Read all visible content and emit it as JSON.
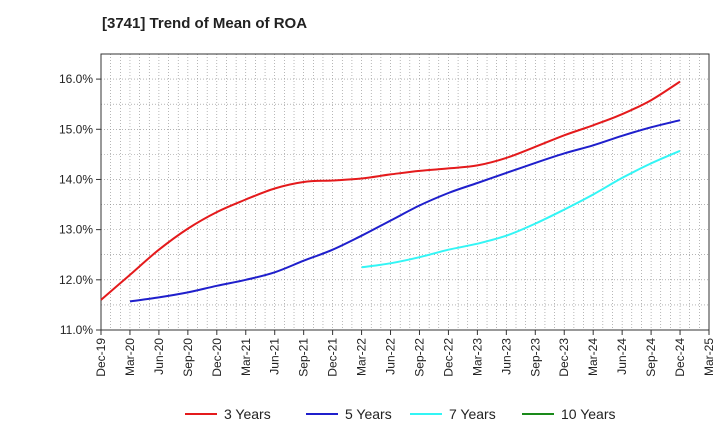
{
  "chart_data": {
    "type": "line",
    "title": "[3741]  Trend of Mean of ROA",
    "xlabel": "",
    "ylabel": "",
    "x": [
      "Dec-19",
      "Mar-20",
      "Jun-20",
      "Sep-20",
      "Dec-20",
      "Mar-21",
      "Jun-21",
      "Sep-21",
      "Dec-21",
      "Mar-22",
      "Jun-22",
      "Sep-22",
      "Dec-22",
      "Mar-23",
      "Jun-23",
      "Sep-23",
      "Dec-23",
      "Mar-24",
      "Jun-24",
      "Sep-24",
      "Dec-24",
      "Mar-25"
    ],
    "ylim": [
      11.0,
      16.5
    ],
    "yticks": [
      11.0,
      12.0,
      13.0,
      14.0,
      15.0,
      16.0
    ],
    "ytick_labels": [
      "11.0%",
      "12.0%",
      "13.0%",
      "14.0%",
      "15.0%",
      "16.0%"
    ],
    "grid": true,
    "legend_position": "bottom",
    "series": [
      {
        "name": "3 Years",
        "color": "#e41a1c",
        "values": [
          11.6,
          12.1,
          12.6,
          13.02,
          13.35,
          13.6,
          13.82,
          13.95,
          13.98,
          14.02,
          14.1,
          14.17,
          14.22,
          14.28,
          14.43,
          14.65,
          14.88,
          15.08,
          15.3,
          15.58,
          15.95,
          null
        ]
      },
      {
        "name": "5 Years",
        "color": "#1f1fcc",
        "values": [
          null,
          11.57,
          11.65,
          11.75,
          11.88,
          12.0,
          12.15,
          12.38,
          12.6,
          12.88,
          13.18,
          13.48,
          13.73,
          13.93,
          14.13,
          14.33,
          14.52,
          14.68,
          14.87,
          15.04,
          15.18,
          null
        ]
      },
      {
        "name": "7 Years",
        "color": "#33f5f5",
        "values": [
          null,
          null,
          null,
          null,
          null,
          null,
          null,
          null,
          null,
          12.25,
          12.33,
          12.45,
          12.6,
          12.72,
          12.88,
          13.12,
          13.4,
          13.7,
          14.03,
          14.32,
          14.57,
          null
        ]
      },
      {
        "name": "10 Years",
        "color": "#1a8a1a",
        "values": [
          null,
          null,
          null,
          null,
          null,
          null,
          null,
          null,
          null,
          null,
          null,
          null,
          null,
          null,
          null,
          null,
          null,
          null,
          null,
          null,
          null,
          null
        ]
      }
    ]
  }
}
